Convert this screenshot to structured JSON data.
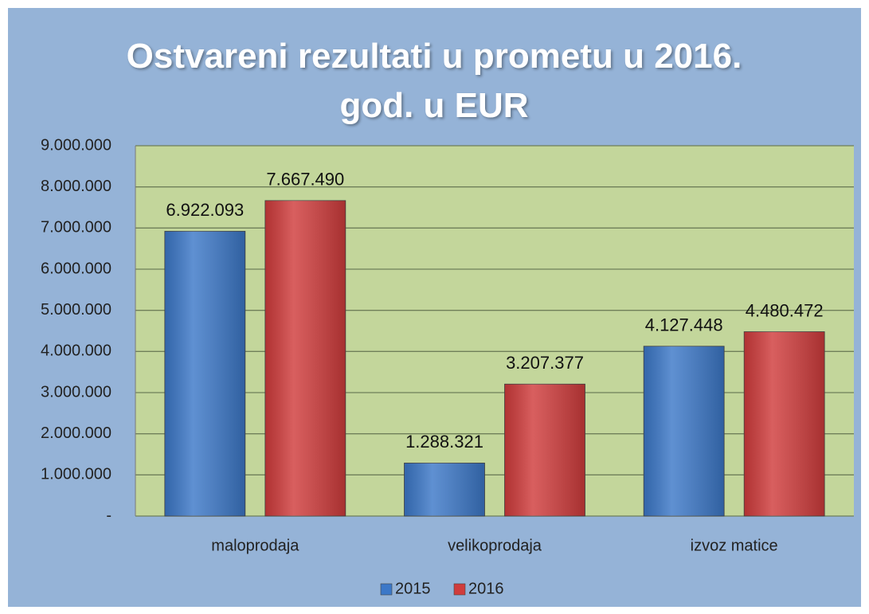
{
  "chart_data": {
    "type": "bar",
    "title": "Ostvareni rezultati u prometu u 2016. god. u EUR",
    "categories": [
      "maloprodaja",
      "velikoprodaja",
      "izvoz matice"
    ],
    "series": [
      {
        "name": "2015",
        "color": "#3c78c8",
        "values": [
          6922093,
          1288321,
          4127448
        ],
        "value_labels": [
          "6.922.093",
          "1.288.321",
          "4.127.448"
        ]
      },
      {
        "name": "2016",
        "color": "#d03c3c",
        "values": [
          7667490,
          3207377,
          4480472
        ],
        "value_labels": [
          "7.667.490",
          "3.207.377",
          "4.480.472"
        ]
      }
    ],
    "ylim": [
      0,
      9000000
    ],
    "yticks": [
      {
        "value": 0,
        "label": "-"
      },
      {
        "value": 1000000,
        "label": "1.000.000"
      },
      {
        "value": 2000000,
        "label": "2.000.000"
      },
      {
        "value": 3000000,
        "label": "3.000.000"
      },
      {
        "value": 4000000,
        "label": "4.000.000"
      },
      {
        "value": 5000000,
        "label": "5.000.000"
      },
      {
        "value": 6000000,
        "label": "6.000.000"
      },
      {
        "value": 7000000,
        "label": "7.000.000"
      },
      {
        "value": 8000000,
        "label": "8.000.000"
      },
      {
        "value": 9000000,
        "label": "9.000.000"
      }
    ],
    "grid": true,
    "legend": "bottom"
  }
}
